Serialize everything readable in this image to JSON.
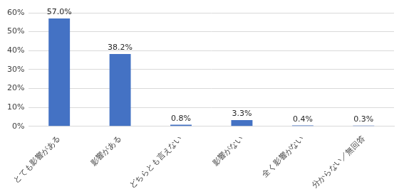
{
  "chart_data": {
    "type": "bar",
    "categories": [
      "とても影響がある",
      "影響がある",
      "どちらとも言えない",
      "影響がない",
      "全く影響がない",
      "分からない／無回答"
    ],
    "values": [
      57.0,
      38.2,
      0.8,
      3.3,
      0.4,
      0.3
    ],
    "value_labels": [
      "57.0%",
      "38.2%",
      "0.8%",
      "3.3%",
      "0.4%",
      "0.3%"
    ],
    "color": "#4472c4",
    "ylim": [
      0,
      60
    ],
    "yticks": [
      {
        "value": 0,
        "label": "0%"
      },
      {
        "value": 10,
        "label": "10%"
      },
      {
        "value": 20,
        "label": "20%"
      },
      {
        "value": 30,
        "label": "30%"
      },
      {
        "value": 40,
        "label": "40%"
      },
      {
        "value": 50,
        "label": "50%"
      },
      {
        "value": 60,
        "label": "60%"
      }
    ],
    "grid": true,
    "data_labels": true
  }
}
